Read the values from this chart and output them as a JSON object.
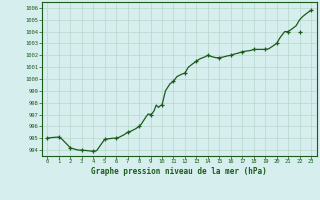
{
  "x_pts": [
    0,
    1,
    2,
    3,
    4,
    5,
    6,
    7,
    8,
    9,
    10,
    11,
    12,
    13,
    14,
    15,
    16,
    17,
    18,
    19,
    20,
    21,
    22,
    23
  ],
  "y_pts": [
    995.0,
    995.1,
    994.2,
    994.0,
    993.9,
    994.9,
    995.0,
    995.5,
    996.0,
    997.0,
    997.8,
    999.8,
    1000.5,
    1001.5,
    1002.0,
    1001.8,
    1002.0,
    1002.3,
    1002.5,
    1002.5,
    1003.0,
    1004.0,
    1004.0,
    1005.8
  ],
  "x_fine": [
    0,
    0.3,
    0.7,
    1,
    1.3,
    1.7,
    2,
    2.3,
    2.7,
    3,
    3.3,
    3.7,
    4,
    4.3,
    4.7,
    5,
    5.3,
    5.7,
    6,
    6.3,
    6.7,
    7,
    7.3,
    7.7,
    8,
    8.2,
    8.4,
    8.6,
    8.8,
    9,
    9.15,
    9.3,
    9.5,
    9.7,
    9.85,
    10,
    10.3,
    10.7,
    11,
    11.3,
    11.7,
    12,
    12.3,
    12.7,
    13,
    13.3,
    13.7,
    14,
    14.3,
    14.7,
    15,
    15.3,
    15.7,
    16,
    16.3,
    16.7,
    17,
    17.3,
    17.7,
    18,
    18.3,
    18.7,
    19,
    19.3,
    19.7,
    20,
    20.3,
    20.7,
    21,
    21.3,
    21.7,
    22,
    22.3,
    22.7,
    23
  ],
  "y_fine": [
    995.0,
    995.05,
    995.08,
    995.1,
    994.9,
    994.5,
    994.2,
    994.1,
    994.0,
    994.0,
    993.97,
    993.93,
    993.9,
    993.95,
    994.5,
    994.9,
    994.95,
    995.0,
    995.0,
    995.1,
    995.3,
    995.5,
    995.6,
    995.8,
    996.0,
    996.2,
    996.5,
    996.8,
    997.05,
    997.0,
    997.1,
    997.3,
    997.8,
    997.6,
    997.75,
    997.8,
    999.0,
    999.6,
    999.8,
    1000.2,
    1000.4,
    1000.5,
    1001.0,
    1001.3,
    1001.5,
    1001.7,
    1001.85,
    1002.0,
    1001.9,
    1001.8,
    1001.8,
    1001.85,
    1001.95,
    1002.0,
    1002.1,
    1002.2,
    1002.3,
    1002.35,
    1002.4,
    1002.5,
    1002.5,
    1002.5,
    1002.5,
    1002.55,
    1002.8,
    1003.0,
    1003.5,
    1004.0,
    1004.0,
    1004.2,
    1004.5,
    1005.0,
    1005.3,
    1005.6,
    1005.8
  ],
  "title": "Graphe pression niveau de la mer (hPa)",
  "line_color": "#1a5c1a",
  "marker_color": "#1a5c1a",
  "bg_color": "#d6eeee",
  "grid_color": "#b8d8cc",
  "text_color": "#1a5c1a",
  "ylim": [
    993.5,
    1006.5
  ],
  "xlim": [
    -0.5,
    23.5
  ],
  "yticks": [
    994,
    995,
    996,
    997,
    998,
    999,
    1000,
    1001,
    1002,
    1003,
    1004,
    1005,
    1006
  ],
  "xticks": [
    0,
    1,
    2,
    3,
    4,
    5,
    6,
    7,
    8,
    9,
    10,
    11,
    12,
    13,
    14,
    15,
    16,
    17,
    18,
    19,
    20,
    21,
    22,
    23
  ]
}
